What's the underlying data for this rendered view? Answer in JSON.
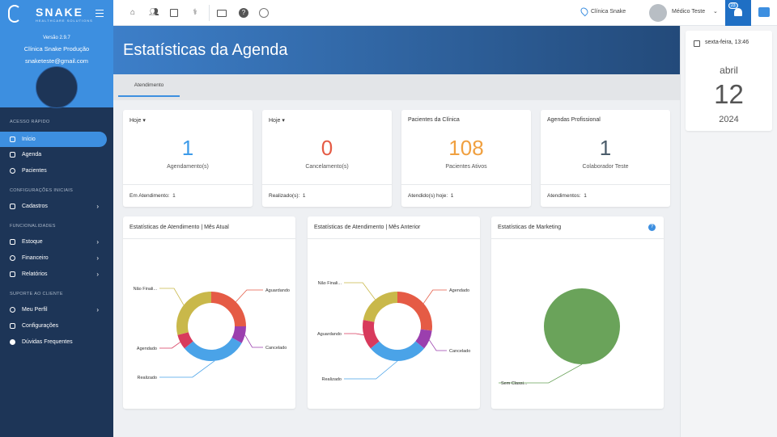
{
  "sidebar": {
    "brand": "SNAKE",
    "tagline": "HEALTHCARE SOLUTIONS",
    "version": "Versão 2.9.7",
    "clinic": "Clínica Snake Produção",
    "email": "snaketeste@gmail.com",
    "sections": [
      "ACESSO RÁPIDO",
      "CONFIGURAÇÕES INICIAIS",
      "FUNCIONALIDADES",
      "SUPORTE AO CLIENTE"
    ],
    "items": [
      "Início",
      "Agenda",
      "Pacientes",
      "Cadastros",
      "Estoque",
      "Financeiro",
      "Relatórios",
      "Meu Perfil",
      "Configurações",
      "Dúvidas Frequentes"
    ]
  },
  "topbar": {
    "location": "Clínica Snake",
    "user": "Médico Teste",
    "notifications": "23"
  },
  "page": {
    "title": "Estatísticas da Agenda",
    "tab": "Atendimento"
  },
  "date": {
    "header": "sexta-feira, 13:46",
    "month": "abril",
    "day": "12",
    "year": "2024"
  },
  "stats": [
    {
      "header": "Hoje",
      "value": "1",
      "label": "Agendamento(s)",
      "foot_label": "Em Atendimento:",
      "foot_value": "1",
      "color": "#3d9be9"
    },
    {
      "header": "Hoje",
      "value": "0",
      "label": "Cancelamento(s)",
      "foot_label": "Realizado(s):",
      "foot_value": "1",
      "color": "#e55b45"
    },
    {
      "header": "Pacientes da Clínica",
      "value": "108",
      "label": "Pacientes Ativos",
      "foot_label": "Atendido(s) hoje:",
      "foot_value": "1",
      "color": "#f0a040"
    },
    {
      "header": "Agendas Profissional",
      "value": "1",
      "label": "Colaborador Teste",
      "foot_label": "Atendimentos:",
      "foot_value": "1",
      "color": "#4a5c6a"
    }
  ],
  "charts": [
    {
      "title": "Estatísticas de Atendimento | Mês Atual"
    },
    {
      "title": "Estatísticas de Atendimento | Mês Anterior"
    },
    {
      "title": "Estatísticas de Marketing"
    }
  ],
  "chart_data": [
    {
      "type": "pie",
      "title": "Estatísticas de Atendimento | Mês Atual",
      "categories": [
        "Aguardando",
        "Cancelado",
        "Realizado",
        "Agendado",
        "Não Finali..."
      ],
      "values": [
        25,
        8,
        31,
        7,
        29
      ],
      "colors": [
        "#e55b45",
        "#9b3fae",
        "#4aa3e8",
        "#d83a5c",
        "#c9b84a"
      ]
    },
    {
      "type": "pie",
      "title": "Estatísticas de Atendimento | Mês Anterior",
      "categories": [
        "Agendado",
        "Cancelado",
        "Realizado",
        "Aguardando",
        "Não Finali..."
      ],
      "values": [
        27,
        9,
        28,
        14,
        22
      ],
      "colors": [
        "#e55b45",
        "#9b3fae",
        "#4aa3e8",
        "#d83a5c",
        "#c9b84a"
      ]
    },
    {
      "type": "pie",
      "title": "Estatísticas de Marketing",
      "categories": [
        "Sem Classi..."
      ],
      "values": [
        100
      ],
      "colors": [
        "#6aa35a"
      ]
    }
  ]
}
